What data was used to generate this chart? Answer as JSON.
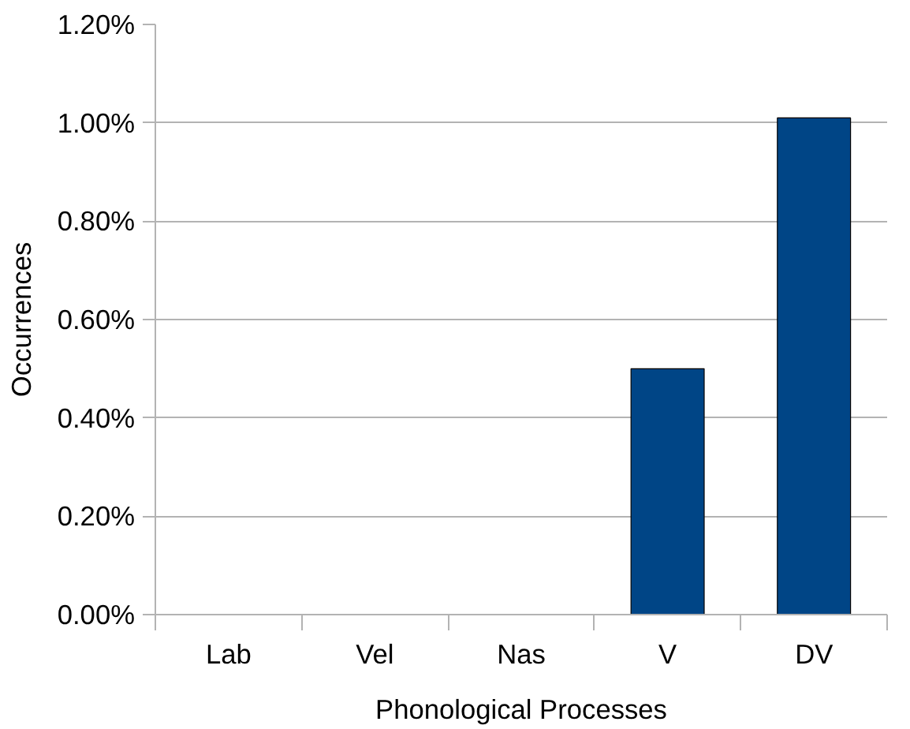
{
  "chart_data": {
    "type": "bar",
    "xlabel": "Phonological Processes",
    "ylabel": "Occurrences",
    "categories": [
      "Lab",
      "Vel",
      "Nas",
      "V",
      "DV"
    ],
    "values": [
      0,
      0,
      0,
      0.5,
      1.01
    ],
    "color": "#004586",
    "ylim": [
      0,
      1.2
    ],
    "yticks": [
      {
        "value": 0,
        "label": "0.00%"
      },
      {
        "value": 0.2,
        "label": "0.20%"
      },
      {
        "value": 0.4,
        "label": "0.40%"
      },
      {
        "value": 0.6,
        "label": "0.60%"
      },
      {
        "value": 0.8,
        "label": "0.80%"
      },
      {
        "value": 1.0,
        "label": "1.00%"
      },
      {
        "value": 1.2,
        "label": "1.20%"
      }
    ],
    "grid": "y"
  }
}
